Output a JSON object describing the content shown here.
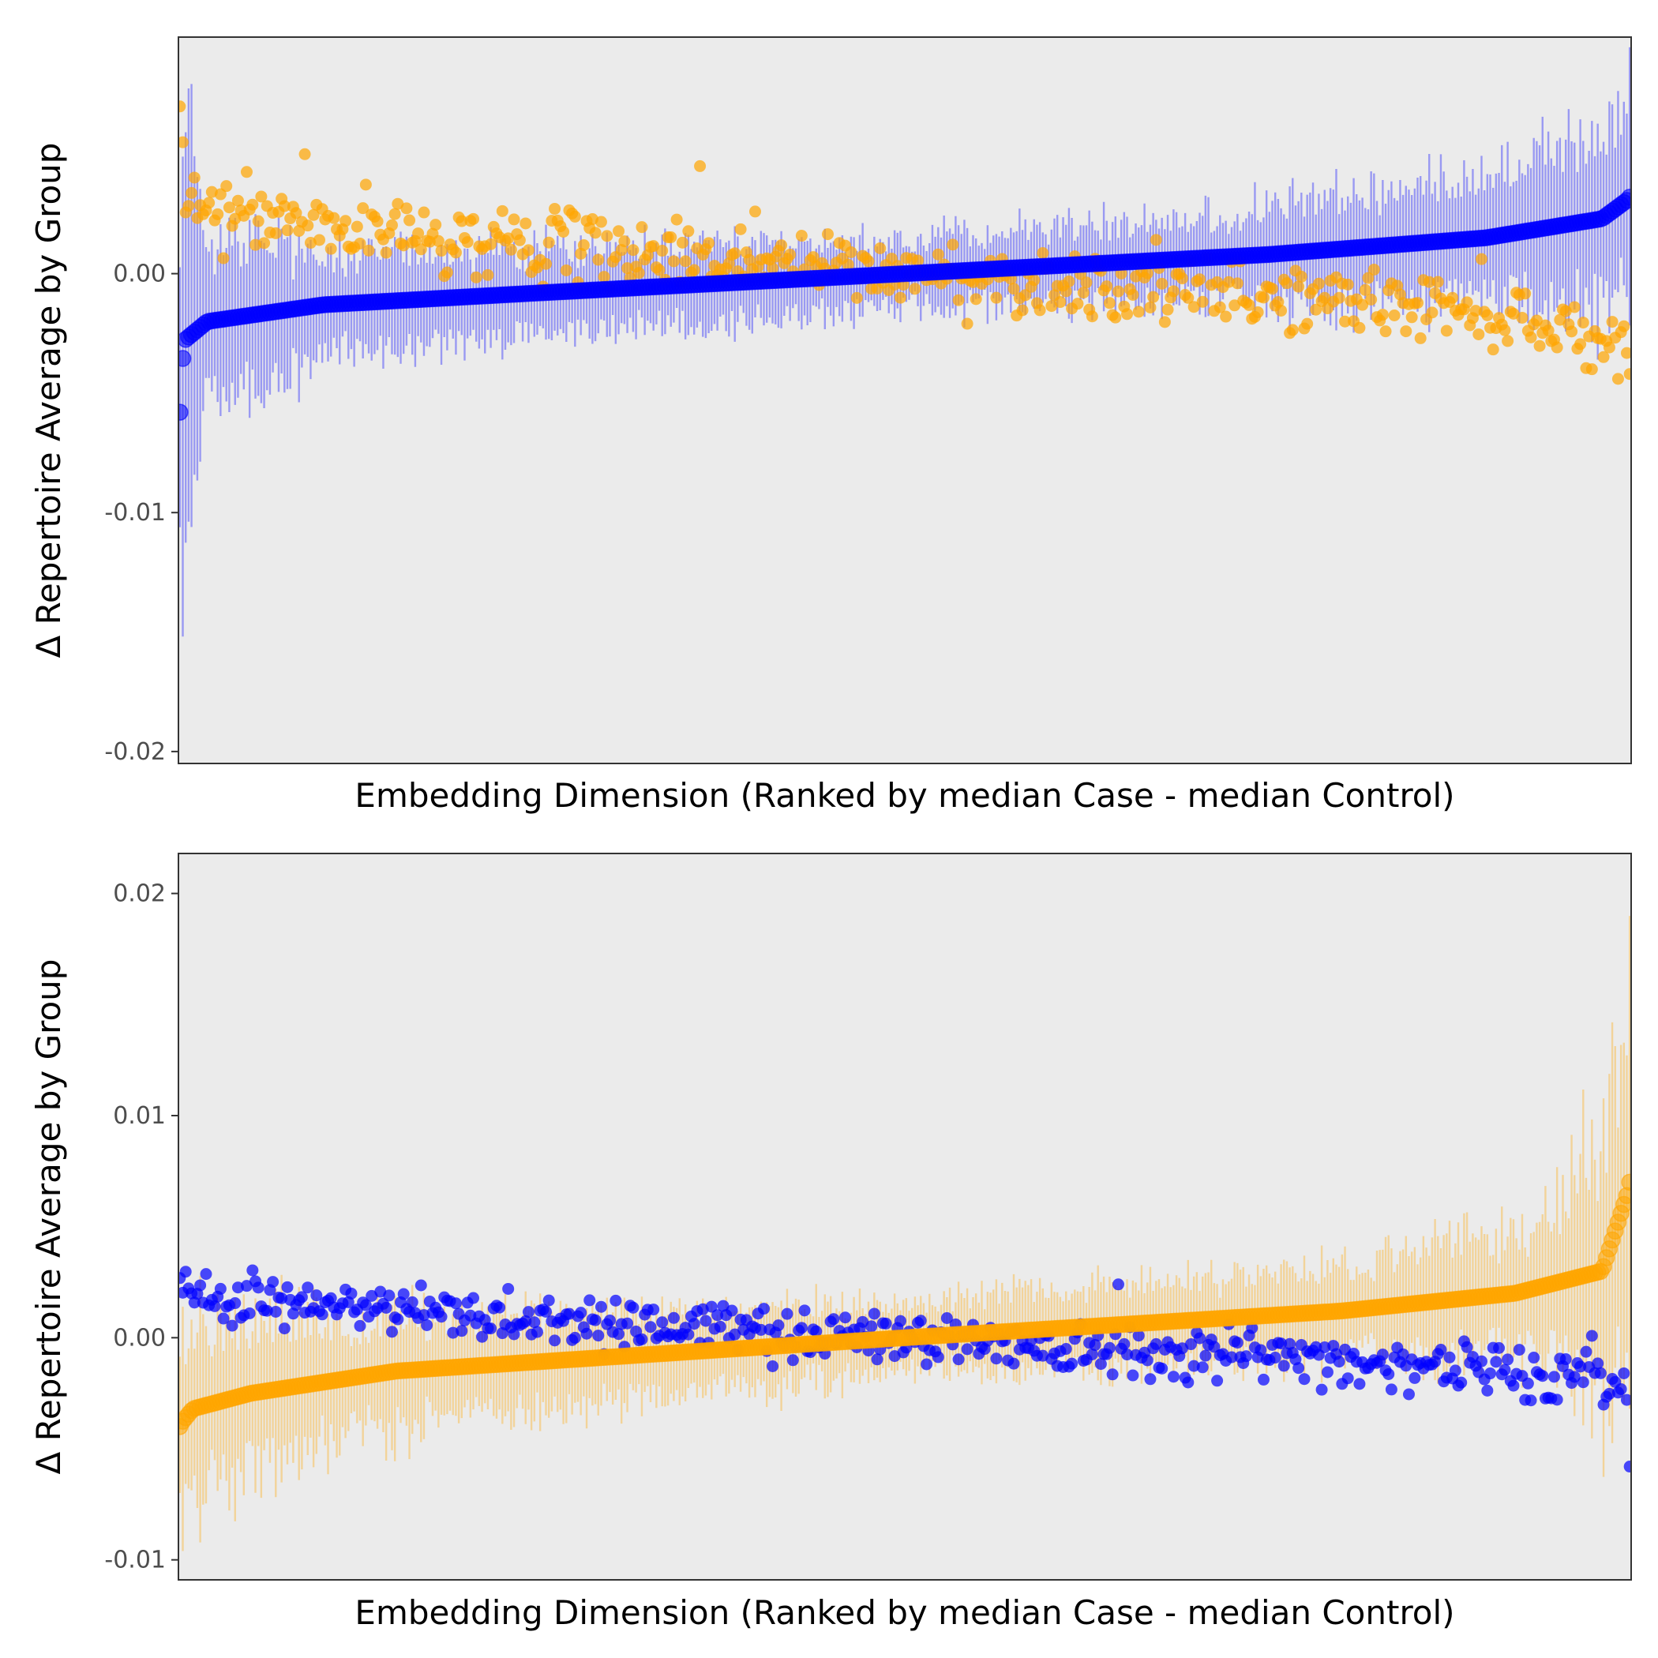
{
  "chart_data": [
    {
      "type": "scatter",
      "panel": "top",
      "xlabel": "Embedding Dimension (Ranked by median Case - median Control)",
      "ylabel": "Δ Repertoire Average by Group",
      "ylim": [
        -0.0205,
        0.0099
      ],
      "xlim": [
        0,
        500
      ],
      "yticks": [
        {
          "value": 0.0,
          "label": "0.00"
        },
        {
          "value": -0.01,
          "label": "-0.01"
        },
        {
          "value": -0.02,
          "label": "-0.02"
        }
      ],
      "grid": false,
      "legend": "none",
      "series": [
        {
          "role": "ranked",
          "color": "#0000ff",
          "n": 500,
          "min": -0.0058,
          "max": 0.0032,
          "sorted_median_curve": [
            [
              0,
              -0.0058
            ],
            [
              2,
              -0.0028
            ],
            [
              10,
              -0.002
            ],
            [
              50,
              -0.0013
            ],
            [
              125,
              -0.0008
            ],
            [
              250,
              0.0
            ],
            [
              375,
              0.0008
            ],
            [
              450,
              0.0015
            ],
            [
              490,
              0.0023
            ],
            [
              500,
              0.0032
            ]
          ],
          "errorbar_halfwidth_curve": [
            [
              0,
              0.01
            ],
            [
              10,
              0.0035
            ],
            [
              50,
              0.0022
            ],
            [
              150,
              0.0016
            ],
            [
              250,
              0.0014
            ],
            [
              350,
              0.0018
            ],
            [
              450,
              0.0026
            ],
            [
              500,
              0.0038
            ]
          ]
        },
        {
          "role": "other",
          "color": "#ffa500",
          "n": 500,
          "mean_curve": [
            [
              0,
              0.003
            ],
            [
              50,
              0.0019
            ],
            [
              150,
              0.001
            ],
            [
              250,
              0.0
            ],
            [
              350,
              -0.0008
            ],
            [
              450,
              -0.0015
            ],
            [
              500,
              -0.003
            ]
          ],
          "scatter_sd": 0.0007,
          "extremes": [
            [
              0,
              0.007
            ],
            [
              1,
              0.0055
            ],
            [
              43,
              0.005
            ],
            [
              179,
              0.0045
            ],
            [
              198,
              0.0026
            ],
            [
              486,
              -0.004
            ],
            [
              500,
              -0.0042
            ]
          ]
        }
      ]
    },
    {
      "type": "scatter",
      "panel": "bottom",
      "xlabel": "Embedding Dimension (Ranked by median Case - median Control)",
      "ylabel": "Δ Repertoire Average by Group",
      "ylim": [
        -0.0109,
        0.0218
      ],
      "xlim": [
        0,
        500
      ],
      "yticks": [
        {
          "value": 0.02,
          "label": "0.02"
        },
        {
          "value": 0.01,
          "label": "0.01"
        },
        {
          "value": 0.0,
          "label": "0.00"
        },
        {
          "value": -0.01,
          "label": "-0.01"
        }
      ],
      "grid": false,
      "legend": "none",
      "series": [
        {
          "role": "ranked",
          "color": "#ffa500",
          "n": 500,
          "min": -0.004,
          "max": 0.007,
          "sorted_median_curve": [
            [
              0,
              -0.004
            ],
            [
              5,
              -0.0032
            ],
            [
              25,
              -0.0025
            ],
            [
              75,
              -0.0015
            ],
            [
              250,
              0.0
            ],
            [
              400,
              0.0012
            ],
            [
              460,
              0.002
            ],
            [
              490,
              0.003
            ],
            [
              500,
              0.007
            ]
          ],
          "errorbar_halfwidth_curve": [
            [
              0,
              0.005
            ],
            [
              20,
              0.0035
            ],
            [
              100,
              0.0022
            ],
            [
              250,
              0.0016
            ],
            [
              400,
              0.002
            ],
            [
              470,
              0.003
            ],
            [
              500,
              0.008
            ]
          ]
        },
        {
          "role": "other",
          "color": "#0000ff",
          "n": 500,
          "mean_curve": [
            [
              0,
              0.0022
            ],
            [
              50,
              0.0014
            ],
            [
              150,
              0.0007
            ],
            [
              250,
              0.0
            ],
            [
              350,
              -0.0006
            ],
            [
              450,
              -0.0014
            ],
            [
              500,
              -0.002
            ]
          ],
          "scatter_sd": 0.0006,
          "extremes": [
            [
              323,
              0.0024
            ],
            [
              471,
              -0.0027
            ],
            [
              498,
              -0.0028
            ],
            [
              500,
              -0.0058
            ]
          ]
        }
      ]
    }
  ]
}
